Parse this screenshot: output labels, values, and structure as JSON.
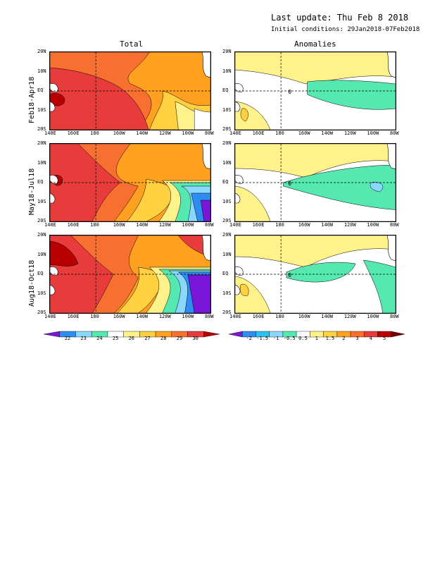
{
  "header": {
    "last_update": "Last update: Thu Feb 8 2018",
    "initial_conditions": "Initial conditions: 29Jan2018-07Feb2018"
  },
  "columns": [
    "Total",
    "Anomalies"
  ],
  "rows": [
    "Feb18-Apr18",
    "May18-Jul18",
    "Aug18-Oct18"
  ],
  "chart_data": {
    "type": "heatmap",
    "x_ticks": [
      "140E",
      "160E",
      "180",
      "160W",
      "140W",
      "120W",
      "100W",
      "80W"
    ],
    "y_ticks": [
      "20N",
      "10N",
      "EQ",
      "10S",
      "20S"
    ],
    "total_colorbar": {
      "labels": [
        "22",
        "23",
        "24",
        "25",
        "26",
        "27",
        "28",
        "29",
        "30"
      ],
      "colors": [
        "#7a16d8",
        "#2f8cf0",
        "#8ad8ff",
        "#55e8b0",
        "#ffffff",
        "#fff28a",
        "#ffd040",
        "#ffa020",
        "#f87030",
        "#e83c3c",
        "#b80000"
      ]
    },
    "anomaly_colorbar": {
      "labels": [
        "-2",
        "-1.5",
        "-1",
        "-0.5",
        "0.5",
        "1",
        "1.5",
        "2",
        "3",
        "4",
        "5"
      ],
      "colors": [
        "#7a16d8",
        "#2f8cf0",
        "#2fc0f0",
        "#8ad8ff",
        "#55e8b0",
        "#ffffff",
        "#fff28a",
        "#ffd040",
        "#ffa020",
        "#f87030",
        "#e83c3c",
        "#b80000",
        "#700000"
      ]
    },
    "contour_label": "0"
  }
}
